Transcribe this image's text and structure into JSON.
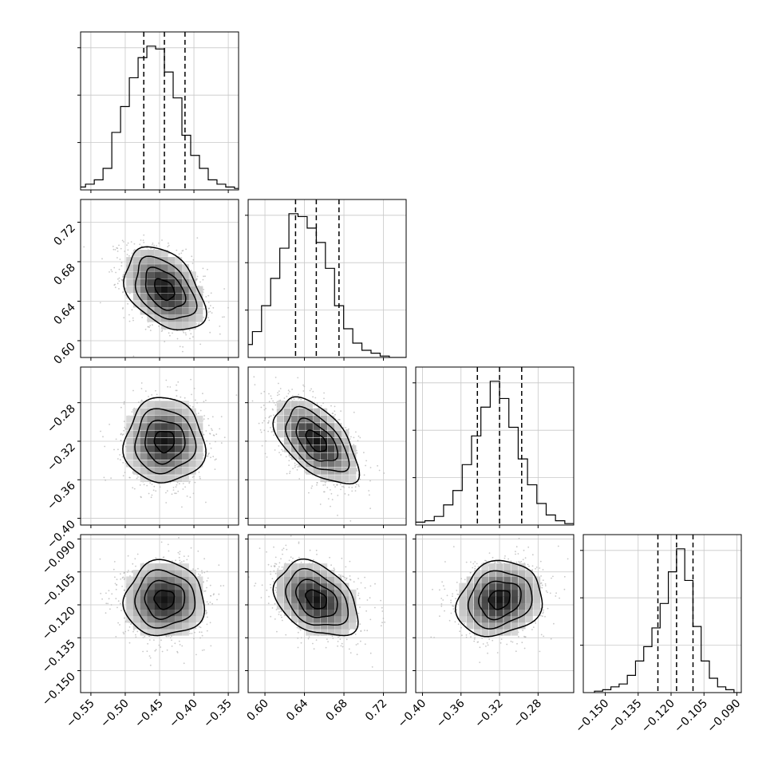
{
  "chart_data": {
    "type": "corner",
    "n_params": 4,
    "params": [
      {
        "range": [
          -0.565,
          -0.335
        ],
        "ticks": [
          -0.55,
          -0.5,
          -0.45,
          -0.4,
          -0.35
        ],
        "tick_labels": [
          "−0.55",
          "−0.50",
          "−0.45",
          "−0.40",
          "−0.35"
        ],
        "quantiles": [
          -0.473,
          -0.443,
          -0.413
        ],
        "mean": -0.443,
        "sd": 0.029,
        "hist_counts": [
          0.02,
          0.04,
          0.07,
          0.15,
          0.4,
          0.58,
          0.78,
          0.92,
          1.0,
          0.98,
          0.82,
          0.64,
          0.38,
          0.24,
          0.15,
          0.07,
          0.04,
          0.02,
          0.01,
          0.0
        ]
      },
      {
        "range": [
          0.583,
          0.743
        ],
        "ticks": [
          0.6,
          0.64,
          0.68,
          0.72
        ],
        "tick_labels": [
          "0.60",
          "0.64",
          "0.68",
          "0.72"
        ],
        "quantiles": [
          0.631,
          0.652,
          0.675
        ],
        "mean": 0.652,
        "sd": 0.021,
        "hist_counts": [
          0.02,
          0.04,
          0.09,
          0.18,
          0.36,
          0.55,
          0.76,
          1.0,
          0.98,
          0.9,
          0.8,
          0.62,
          0.36,
          0.2,
          0.1,
          0.05,
          0.03,
          0.01,
          0.0,
          0.0
        ]
      },
      {
        "range": [
          -0.407,
          -0.243
        ],
        "ticks": [
          -0.4,
          -0.36,
          -0.32,
          -0.28
        ],
        "tick_labels": [
          "−0.40",
          "−0.36",
          "−0.32",
          "−0.28"
        ],
        "quantiles": [
          -0.343,
          -0.32,
          -0.297
        ],
        "mean": -0.32,
        "sd": 0.022,
        "hist_counts": [
          0.01,
          0.02,
          0.03,
          0.06,
          0.14,
          0.24,
          0.42,
          0.62,
          0.82,
          1.0,
          0.88,
          0.68,
          0.46,
          0.28,
          0.15,
          0.07,
          0.03,
          0.01,
          0.0,
          0.0
        ]
      },
      {
        "range": [
          -0.16,
          -0.088
        ],
        "ticks": [
          -0.15,
          -0.135,
          -0.12,
          -0.105,
          -0.09
        ],
        "tick_labels": [
          "−0.150",
          "−0.135",
          "−0.120",
          "−0.105",
          "−0.090"
        ],
        "quantiles": [
          -0.126,
          -0.1175,
          -0.11
        ],
        "mean": -0.1175,
        "sd": 0.0085,
        "hist_counts": [
          0.01,
          0.02,
          0.04,
          0.06,
          0.12,
          0.22,
          0.32,
          0.45,
          0.62,
          0.84,
          1.0,
          0.78,
          0.46,
          0.22,
          0.1,
          0.04,
          0.02,
          0.0,
          0.0,
          0.0
        ]
      }
    ],
    "correlations": [
      [
        1.0,
        -0.4,
        0.0,
        0.0
      ],
      [
        -0.4,
        1.0,
        -0.55,
        -0.35
      ],
      [
        0.0,
        -0.55,
        1.0,
        0.15
      ],
      [
        0.0,
        -0.35,
        0.15,
        1.0
      ]
    ],
    "contour_levels_sigma": [
      0.5,
      1.0,
      1.5,
      2.0
    ],
    "grid": true,
    "colors": {
      "scatter": "#b0b0b0",
      "line": "#000000",
      "density_dark": "#111111"
    }
  }
}
